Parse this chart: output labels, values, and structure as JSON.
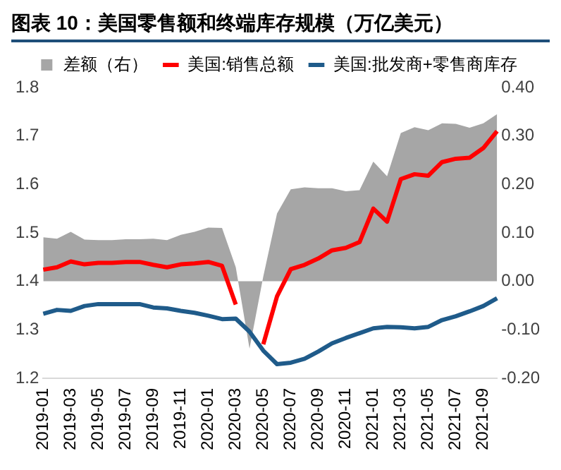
{
  "chart_data": {
    "type": "line",
    "title": "图表 10：美国零售额和终端库存规模（万亿美元）",
    "categories": [
      "2019-01",
      null,
      "2019-03",
      null,
      "2019-05",
      null,
      "2019-07",
      null,
      "2019-09",
      null,
      "2019-11",
      null,
      "2020-01",
      null,
      "2020-03",
      null,
      "2020-05",
      null,
      "2020-07",
      null,
      "2020-09",
      null,
      "2020-11",
      null,
      "2021-01",
      null,
      "2021-03",
      null,
      "2021-05",
      null,
      "2021-07",
      null,
      "2021-09",
      null
    ],
    "series": [
      {
        "name": "差额（右）",
        "type": "area",
        "axis": "y2",
        "color": "#a6a6a6",
        "values": [
          0.091,
          0.088,
          0.102,
          0.086,
          0.085,
          0.085,
          0.087,
          0.087,
          0.088,
          0.085,
          0.096,
          0.102,
          0.111,
          0.11,
          0.029,
          -0.139,
          0.01,
          0.14,
          0.19,
          0.194,
          0.192,
          0.192,
          0.186,
          0.188,
          0.247,
          0.217,
          0.306,
          0.318,
          0.312,
          0.326,
          0.325,
          0.317,
          0.326,
          0.345
        ]
      },
      {
        "name": "美国:销售总额",
        "type": "line",
        "color": "#ff0000",
        "values": [
          1.424,
          1.429,
          1.441,
          1.435,
          1.438,
          1.438,
          1.44,
          1.44,
          1.434,
          1.429,
          1.435,
          1.437,
          1.44,
          1.432,
          1.352,
          null,
          1.27,
          1.369,
          1.425,
          1.434,
          1.447,
          1.464,
          1.469,
          1.481,
          1.55,
          1.523,
          1.611,
          1.621,
          1.618,
          1.646,
          1.653,
          1.655,
          1.675,
          1.71
        ]
      },
      {
        "name": "美国:批发商+零售商库存",
        "type": "line",
        "color": "#1f5b8a",
        "values": [
          1.333,
          1.341,
          1.339,
          1.349,
          1.353,
          1.353,
          1.353,
          1.353,
          1.346,
          1.344,
          1.339,
          1.335,
          1.329,
          1.322,
          1.323,
          1.296,
          1.257,
          1.229,
          1.232,
          1.24,
          1.255,
          1.272,
          1.283,
          1.293,
          1.303,
          1.306,
          1.305,
          1.303,
          1.306,
          1.32,
          1.328,
          1.338,
          1.349,
          1.365
        ]
      }
    ],
    "ylim": [
      1.2,
      1.8
    ],
    "yticks": [
      1.2,
      1.3,
      1.4,
      1.5,
      1.6,
      1.7,
      1.8
    ],
    "y2lim": [
      -0.2,
      0.4
    ],
    "y2ticks": [
      {
        "value": -0.2,
        "label": "-0.20"
      },
      {
        "value": -0.1,
        "label": "-0.10"
      },
      {
        "value": 0,
        "label": "0.00"
      },
      {
        "value": 0.1,
        "label": "0.10"
      },
      {
        "value": 0.2,
        "label": "0.20"
      },
      {
        "value": 0.3,
        "label": "0.30"
      },
      {
        "value": 0.4,
        "label": "0.40"
      }
    ],
    "legend": "top",
    "marker": "none"
  }
}
